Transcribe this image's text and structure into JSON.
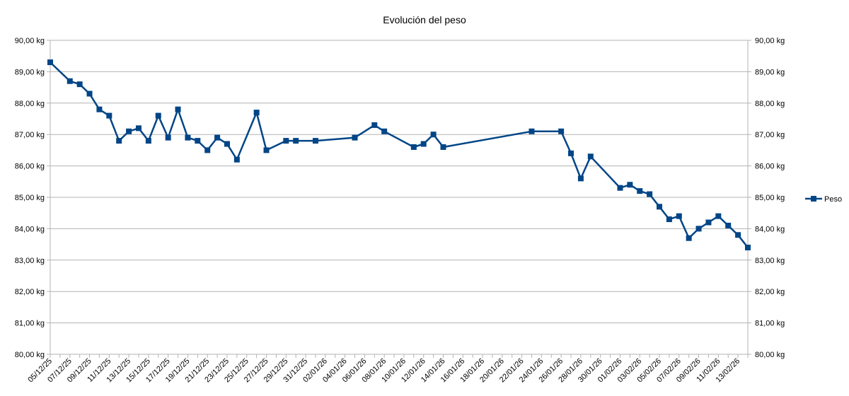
{
  "chart_data": {
    "type": "line",
    "title": "Evolución del peso",
    "ylim": [
      80,
      90
    ],
    "y_ticks": [
      "80,00 kg",
      "81,00 kg",
      "82,00 kg",
      "83,00 kg",
      "84,00 kg",
      "85,00 kg",
      "86,00 kg",
      "87,00 kg",
      "88,00 kg",
      "89,00 kg",
      "90,00 kg"
    ],
    "x_start": "2025-12-05",
    "x_end": "2026-02-14",
    "x_tick_labels": [
      "05/12/25",
      "07/12/25",
      "09/12/25",
      "11/12/25",
      "13/12/25",
      "15/12/25",
      "17/12/25",
      "19/12/25",
      "21/12/25",
      "23/12/25",
      "25/12/25",
      "27/12/25",
      "29/12/25",
      "31/12/25",
      "02/01/26",
      "04/01/26",
      "06/01/26",
      "08/01/26",
      "10/01/26",
      "12/01/26",
      "14/01/26",
      "16/01/26",
      "18/01/26",
      "20/01/26",
      "22/01/26",
      "24/01/26",
      "26/01/26",
      "28/01/26",
      "30/01/26",
      "01/02/26",
      "03/02/26",
      "05/02/26",
      "07/02/26",
      "09/02/26",
      "11/02/26",
      "13/02/26"
    ],
    "series": [
      {
        "name": "Peso",
        "color": "#004586",
        "points": [
          {
            "x": "2025-12-05",
            "y": 89.3
          },
          {
            "x": "2025-12-07",
            "y": 88.7
          },
          {
            "x": "2025-12-08",
            "y": 88.6
          },
          {
            "x": "2025-12-09",
            "y": 88.3
          },
          {
            "x": "2025-12-10",
            "y": 87.8
          },
          {
            "x": "2025-12-11",
            "y": 87.6
          },
          {
            "x": "2025-12-12",
            "y": 86.8
          },
          {
            "x": "2025-12-13",
            "y": 87.1
          },
          {
            "x": "2025-12-14",
            "y": 87.2
          },
          {
            "x": "2025-12-15",
            "y": 86.8
          },
          {
            "x": "2025-12-16",
            "y": 87.6
          },
          {
            "x": "2025-12-17",
            "y": 86.9
          },
          {
            "x": "2025-12-18",
            "y": 87.8
          },
          {
            "x": "2025-12-19",
            "y": 86.9
          },
          {
            "x": "2025-12-20",
            "y": 86.8
          },
          {
            "x": "2025-12-21",
            "y": 86.5
          },
          {
            "x": "2025-12-22",
            "y": 86.9
          },
          {
            "x": "2025-12-23",
            "y": 86.7
          },
          {
            "x": "2025-12-24",
            "y": 86.2
          },
          {
            "x": "2025-12-26",
            "y": 87.7
          },
          {
            "x": "2025-12-27",
            "y": 86.5
          },
          {
            "x": "2025-12-29",
            "y": 86.8
          },
          {
            "x": "2025-12-30",
            "y": 86.8
          },
          {
            "x": "2026-01-01",
            "y": 86.8
          },
          {
            "x": "2026-01-05",
            "y": 86.9
          },
          {
            "x": "2026-01-07",
            "y": 87.3
          },
          {
            "x": "2026-01-08",
            "y": 87.1
          },
          {
            "x": "2026-01-11",
            "y": 86.6
          },
          {
            "x": "2026-01-12",
            "y": 86.7
          },
          {
            "x": "2026-01-13",
            "y": 87.0
          },
          {
            "x": "2026-01-14",
            "y": 86.6
          },
          {
            "x": "2026-01-23",
            "y": 87.1
          },
          {
            "x": "2026-01-26",
            "y": 87.1
          },
          {
            "x": "2026-01-27",
            "y": 86.4
          },
          {
            "x": "2026-01-28",
            "y": 85.6
          },
          {
            "x": "2026-01-29",
            "y": 86.3
          },
          {
            "x": "2026-02-01",
            "y": 85.3
          },
          {
            "x": "2026-02-02",
            "y": 85.4
          },
          {
            "x": "2026-02-03",
            "y": 85.2
          },
          {
            "x": "2026-02-04",
            "y": 85.1
          },
          {
            "x": "2026-02-05",
            "y": 84.7
          },
          {
            "x": "2026-02-06",
            "y": 84.3
          },
          {
            "x": "2026-02-07",
            "y": 84.4
          },
          {
            "x": "2026-02-08",
            "y": 83.7
          },
          {
            "x": "2026-02-09",
            "y": 84.0
          },
          {
            "x": "2026-02-10",
            "y": 84.2
          },
          {
            "x": "2026-02-11",
            "y": 84.4
          },
          {
            "x": "2026-02-12",
            "y": 84.1
          },
          {
            "x": "2026-02-13",
            "y": 83.8
          },
          {
            "x": "2026-02-14",
            "y": 83.4
          }
        ]
      }
    ],
    "legend": {
      "position": "right",
      "label": "Peso"
    },
    "grid": true
  }
}
